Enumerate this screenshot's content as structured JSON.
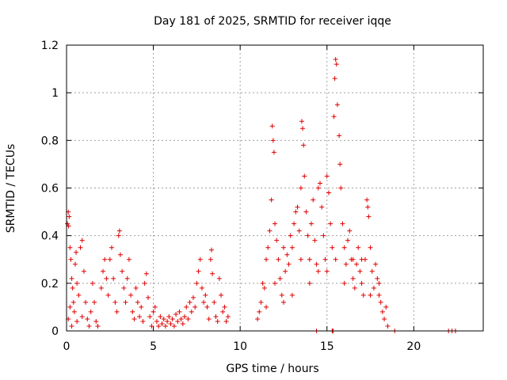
{
  "chart_data": {
    "type": "scatter",
    "title": "Day 181 of 2025, SRMTID for receiver iqqe",
    "xlabel": "GPS time / hours",
    "ylabel": "SRMTID / TECUs",
    "xlim": [
      0,
      24
    ],
    "ylim": [
      0,
      1.2
    ],
    "xticks": [
      0,
      5,
      10,
      15,
      20
    ],
    "yticks": [
      0,
      0.2,
      0.4,
      0.6,
      0.8,
      1.0,
      1.2
    ],
    "xtick_labels": [
      "0",
      "5",
      "10",
      "15",
      "20"
    ],
    "ytick_labels": [
      "0",
      "0.2",
      "0.4",
      "0.6",
      "0.8",
      "1",
      "1.2"
    ],
    "grid": true,
    "marker": "+",
    "series": [
      {
        "name": "SRMTID",
        "color": "#e00000",
        "points": [
          [
            0.05,
            0.45
          ],
          [
            0.1,
            0.5
          ],
          [
            0.12,
            0.44
          ],
          [
            0.15,
            0.48
          ],
          [
            0.2,
            0.35
          ],
          [
            0.25,
            0.3
          ],
          [
            0.3,
            0.22
          ],
          [
            0.35,
            0.18
          ],
          [
            0.4,
            0.12
          ],
          [
            0.45,
            0.08
          ],
          [
            0.5,
            0.28
          ],
          [
            0.55,
            0.33
          ],
          [
            0.6,
            0.2
          ],
          [
            0.7,
            0.15
          ],
          [
            0.8,
            0.35
          ],
          [
            0.9,
            0.38
          ],
          [
            1.0,
            0.25
          ],
          [
            1.1,
            0.12
          ],
          [
            1.2,
            0.05
          ],
          [
            1.3,
            0.02
          ],
          [
            0.1,
            0.05
          ],
          [
            0.2,
            0.1
          ],
          [
            0.3,
            0.02
          ],
          [
            0.6,
            0.04
          ],
          [
            0.9,
            0.06
          ],
          [
            1.4,
            0.08
          ],
          [
            1.5,
            0.2
          ],
          [
            1.6,
            0.12
          ],
          [
            1.7,
            0.04
          ],
          [
            1.8,
            0.02
          ],
          [
            2.0,
            0.18
          ],
          [
            2.1,
            0.25
          ],
          [
            2.2,
            0.3
          ],
          [
            2.3,
            0.22
          ],
          [
            2.4,
            0.15
          ],
          [
            2.5,
            0.3
          ],
          [
            2.6,
            0.35
          ],
          [
            2.7,
            0.22
          ],
          [
            2.8,
            0.12
          ],
          [
            2.9,
            0.08
          ],
          [
            3.0,
            0.4
          ],
          [
            3.05,
            0.42
          ],
          [
            3.1,
            0.32
          ],
          [
            3.2,
            0.25
          ],
          [
            3.3,
            0.18
          ],
          [
            3.4,
            0.12
          ],
          [
            3.5,
            0.22
          ],
          [
            3.6,
            0.3
          ],
          [
            3.7,
            0.15
          ],
          [
            3.8,
            0.08
          ],
          [
            3.9,
            0.05
          ],
          [
            4.0,
            0.18
          ],
          [
            4.1,
            0.12
          ],
          [
            4.2,
            0.06
          ],
          [
            4.3,
            0.1
          ],
          [
            4.4,
            0.04
          ],
          [
            4.5,
            0.2
          ],
          [
            4.6,
            0.24
          ],
          [
            4.7,
            0.14
          ],
          [
            4.8,
            0.06
          ],
          [
            4.9,
            0.02
          ],
          [
            5.0,
            0.08
          ],
          [
            5.1,
            0.1
          ],
          [
            5.2,
            0.04
          ],
          [
            5.3,
            0.02
          ],
          [
            5.4,
            0.06
          ],
          [
            5.5,
            0.03
          ],
          [
            5.6,
            0.05
          ],
          [
            5.7,
            0.02
          ],
          [
            5.8,
            0.04
          ],
          [
            5.9,
            0.06
          ],
          [
            6.0,
            0.03
          ],
          [
            6.1,
            0.05
          ],
          [
            6.2,
            0.02
          ],
          [
            6.3,
            0.07
          ],
          [
            6.4,
            0.04
          ],
          [
            6.5,
            0.08
          ],
          [
            6.6,
            0.05
          ],
          [
            6.7,
            0.03
          ],
          [
            6.8,
            0.06
          ],
          [
            6.9,
            0.1
          ],
          [
            7.0,
            0.05
          ],
          [
            7.1,
            0.12
          ],
          [
            7.2,
            0.08
          ],
          [
            7.3,
            0.14
          ],
          [
            7.4,
            0.1
          ],
          [
            7.5,
            0.2
          ],
          [
            7.6,
            0.25
          ],
          [
            7.7,
            0.3
          ],
          [
            7.8,
            0.18
          ],
          [
            7.9,
            0.12
          ],
          [
            8.0,
            0.15
          ],
          [
            8.1,
            0.1
          ],
          [
            8.2,
            0.05
          ],
          [
            8.3,
            0.3
          ],
          [
            8.35,
            0.34
          ],
          [
            8.4,
            0.24
          ],
          [
            8.5,
            0.12
          ],
          [
            8.6,
            0.06
          ],
          [
            8.7,
            0.04
          ],
          [
            8.8,
            0.22
          ],
          [
            8.9,
            0.15
          ],
          [
            9.0,
            0.08
          ],
          [
            9.1,
            0.1
          ],
          [
            9.2,
            0.04
          ],
          [
            9.3,
            0.06
          ],
          [
            11.0,
            0.05
          ],
          [
            11.1,
            0.08
          ],
          [
            11.2,
            0.12
          ],
          [
            11.3,
            0.2
          ],
          [
            11.4,
            0.18
          ],
          [
            11.5,
            0.3
          ],
          [
            11.6,
            0.35
          ],
          [
            11.7,
            0.42
          ],
          [
            11.8,
            0.55
          ],
          [
            11.85,
            0.86
          ],
          [
            11.9,
            0.8
          ],
          [
            11.95,
            0.75
          ],
          [
            12.0,
            0.45
          ],
          [
            12.1,
            0.38
          ],
          [
            12.2,
            0.3
          ],
          [
            12.3,
            0.22
          ],
          [
            12.4,
            0.15
          ],
          [
            12.5,
            0.12
          ],
          [
            12.6,
            0.25
          ],
          [
            12.7,
            0.32
          ],
          [
            12.8,
            0.28
          ],
          [
            12.9,
            0.4
          ],
          [
            13.0,
            0.35
          ],
          [
            13.1,
            0.45
          ],
          [
            13.2,
            0.5
          ],
          [
            13.3,
            0.52
          ],
          [
            13.4,
            0.42
          ],
          [
            13.5,
            0.6
          ],
          [
            13.55,
            0.88
          ],
          [
            13.6,
            0.85
          ],
          [
            13.65,
            0.78
          ],
          [
            13.7,
            0.65
          ],
          [
            13.8,
            0.5
          ],
          [
            13.9,
            0.4
          ],
          [
            14.0,
            0.3
          ],
          [
            14.1,
            0.45
          ],
          [
            14.2,
            0.55
          ],
          [
            14.3,
            0.38
          ],
          [
            14.4,
            0.28
          ],
          [
            14.5,
            0.6
          ],
          [
            14.6,
            0.62
          ],
          [
            14.7,
            0.52
          ],
          [
            14.8,
            0.4
          ],
          [
            14.9,
            0.3
          ],
          [
            15.0,
            0.65
          ],
          [
            15.1,
            0.58
          ],
          [
            15.2,
            0.45
          ],
          [
            15.3,
            0.35
          ],
          [
            15.4,
            0.9
          ],
          [
            15.45,
            1.06
          ],
          [
            15.5,
            1.14
          ],
          [
            15.55,
            1.12
          ],
          [
            15.6,
            0.95
          ],
          [
            15.7,
            0.82
          ],
          [
            15.75,
            0.7
          ],
          [
            15.8,
            0.6
          ],
          [
            15.9,
            0.45
          ],
          [
            16.0,
            0.35
          ],
          [
            16.1,
            0.28
          ],
          [
            16.2,
            0.38
          ],
          [
            16.3,
            0.42
          ],
          [
            16.4,
            0.3
          ],
          [
            16.5,
            0.22
          ],
          [
            16.6,
            0.18
          ],
          [
            16.7,
            0.28
          ],
          [
            16.8,
            0.35
          ],
          [
            16.9,
            0.25
          ],
          [
            17.0,
            0.2
          ],
          [
            17.1,
            0.15
          ],
          [
            17.2,
            0.3
          ],
          [
            17.3,
            0.55
          ],
          [
            17.35,
            0.52
          ],
          [
            17.4,
            0.48
          ],
          [
            17.5,
            0.35
          ],
          [
            17.6,
            0.25
          ],
          [
            17.7,
            0.18
          ],
          [
            17.8,
            0.28
          ],
          [
            17.9,
            0.22
          ],
          [
            18.0,
            0.15
          ],
          [
            18.1,
            0.12
          ],
          [
            18.2,
            0.08
          ],
          [
            18.3,
            0.05
          ],
          [
            18.4,
            0.1
          ],
          [
            18.5,
            0.02
          ],
          [
            11.5,
            0.1
          ],
          [
            12.0,
            0.2
          ],
          [
            13.0,
            0.15
          ],
          [
            14.0,
            0.2
          ],
          [
            15.0,
            0.25
          ],
          [
            16.0,
            0.2
          ],
          [
            17.0,
            0.3
          ],
          [
            18.0,
            0.2
          ],
          [
            12.5,
            0.35
          ],
          [
            13.5,
            0.3
          ],
          [
            14.5,
            0.25
          ],
          [
            15.5,
            0.3
          ],
          [
            16.5,
            0.3
          ],
          [
            17.5,
            0.15
          ],
          [
            14.4,
            0.0
          ],
          [
            15.3,
            0.0
          ],
          [
            15.35,
            0.0
          ],
          [
            18.9,
            0.0
          ],
          [
            22.0,
            0.0
          ],
          [
            22.2,
            0.0
          ],
          [
            22.4,
            0.0
          ]
        ]
      }
    ]
  }
}
